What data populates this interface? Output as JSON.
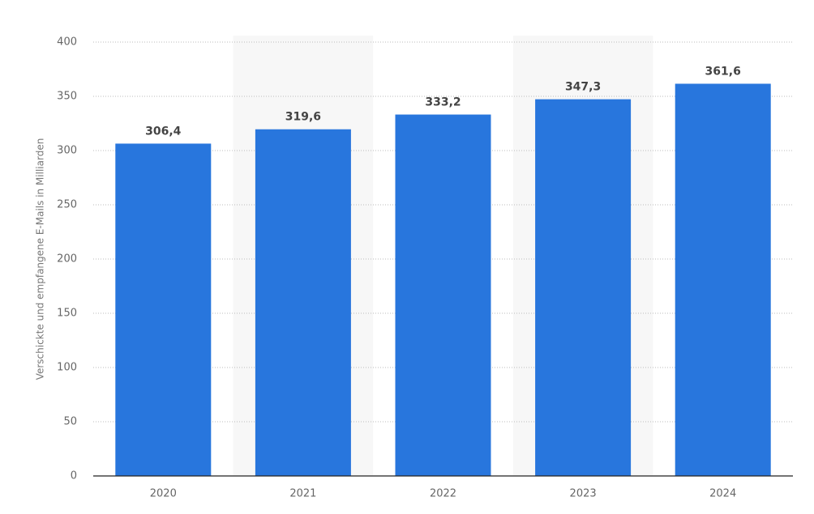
{
  "chart_data": {
    "type": "bar",
    "y_label": "Verschickte und empfangene E-Mails in Milliarden",
    "categories": [
      "2020",
      "2021",
      "2022",
      "2023",
      "2024"
    ],
    "values": [
      306.4,
      319.6,
      333.2,
      347.3,
      361.6
    ],
    "value_labels": [
      "306,4",
      "319,6",
      "333,2",
      "347,3",
      "361,6"
    ],
    "color": "#2876dd",
    "ylim": [
      0,
      400
    ],
    "yticks": [
      0,
      50,
      100,
      150,
      200,
      250,
      300,
      350,
      400
    ],
    "grid": true
  }
}
